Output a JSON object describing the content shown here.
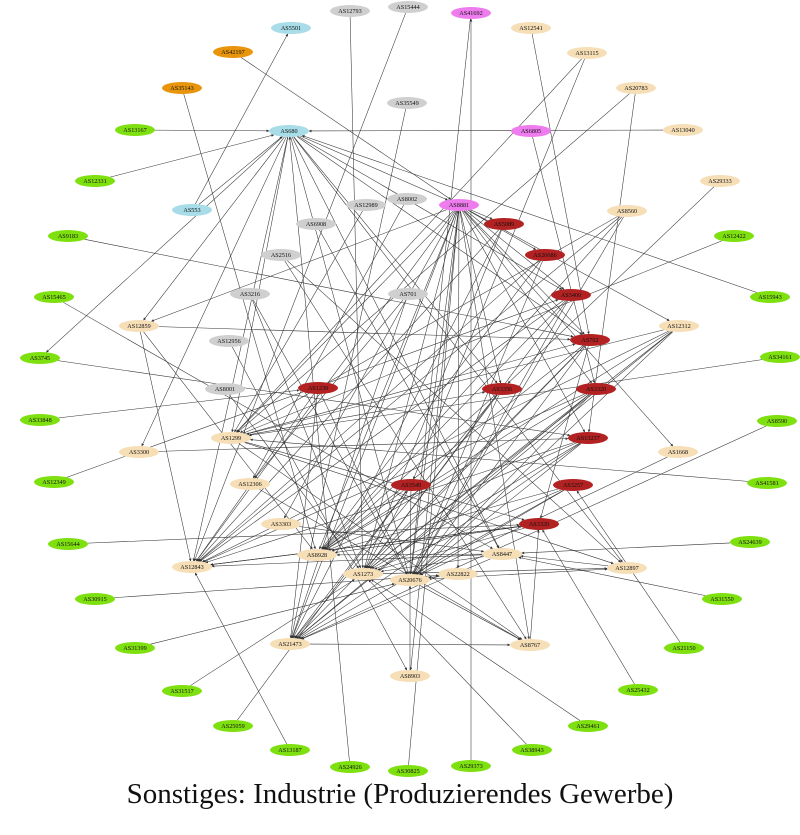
{
  "caption": "Sonstiges: Industrie (Produzierendes Gewerbe)",
  "colors": {
    "green": "#7ee00e",
    "beige": "#f6deb6",
    "darkred": "#b22222",
    "gray": "#cfcfcf",
    "lightblue": "#a7dce8",
    "violet": "#ef7cef",
    "orange": "#e8950c",
    "edge": "#333333"
  },
  "nodes": [
    {
      "id": "AS12793",
      "color": "gray"
    },
    {
      "id": "AS15444",
      "color": "gray"
    },
    {
      "id": "AS41692",
      "color": "violet"
    },
    {
      "id": "AS5501",
      "color": "lightblue"
    },
    {
      "id": "AS12541",
      "color": "beige"
    },
    {
      "id": "AS42197",
      "color": "orange"
    },
    {
      "id": "AS13115",
      "color": "beige"
    },
    {
      "id": "AS35143",
      "color": "orange"
    },
    {
      "id": "AS20783",
      "color": "beige"
    },
    {
      "id": "AS35549",
      "color": "gray"
    },
    {
      "id": "AS13167",
      "color": "green"
    },
    {
      "id": "AS680",
      "color": "lightblue"
    },
    {
      "id": "AS6805",
      "color": "violet"
    },
    {
      "id": "AS13040",
      "color": "beige"
    },
    {
      "id": "AS12331",
      "color": "green"
    },
    {
      "id": "AS29333",
      "color": "beige"
    },
    {
      "id": "AS553",
      "color": "lightblue"
    },
    {
      "id": "AS12989",
      "color": "gray"
    },
    {
      "id": "AS8002",
      "color": "gray"
    },
    {
      "id": "AS8881",
      "color": "violet"
    },
    {
      "id": "AS8560",
      "color": "beige"
    },
    {
      "id": "AS5089",
      "color": "darkred"
    },
    {
      "id": "AS6908",
      "color": "gray"
    },
    {
      "id": "AS9183",
      "color": "green"
    },
    {
      "id": "AS12422",
      "color": "green"
    },
    {
      "id": "AS2516",
      "color": "gray"
    },
    {
      "id": "AS20686",
      "color": "darkred"
    },
    {
      "id": "AS15465",
      "color": "green"
    },
    {
      "id": "AS3216",
      "color": "gray"
    },
    {
      "id": "AS701",
      "color": "gray"
    },
    {
      "id": "AS5400",
      "color": "darkred"
    },
    {
      "id": "AS15943",
      "color": "green"
    },
    {
      "id": "AS12859",
      "color": "beige"
    },
    {
      "id": "AS12312",
      "color": "beige"
    },
    {
      "id": "AS702",
      "color": "darkred"
    },
    {
      "id": "AS12956",
      "color": "gray"
    },
    {
      "id": "AS3745",
      "color": "green"
    },
    {
      "id": "AS34161",
      "color": "green"
    },
    {
      "id": "AS1239",
      "color": "darkred"
    },
    {
      "id": "AS3356",
      "color": "darkred"
    },
    {
      "id": "AS3320",
      "color": "darkred"
    },
    {
      "id": "AS8001",
      "color": "gray"
    },
    {
      "id": "AS33848",
      "color": "green"
    },
    {
      "id": "AS8590",
      "color": "green"
    },
    {
      "id": "AS1299",
      "color": "beige"
    },
    {
      "id": "AS13237",
      "color": "darkred"
    },
    {
      "id": "AS3300",
      "color": "beige"
    },
    {
      "id": "AS1668",
      "color": "beige"
    },
    {
      "id": "AS12349",
      "color": "green"
    },
    {
      "id": "AS12306",
      "color": "beige"
    },
    {
      "id": "AS3549",
      "color": "darkred"
    },
    {
      "id": "AS3257",
      "color": "darkred"
    },
    {
      "id": "AS41581",
      "color": "green"
    },
    {
      "id": "AS3303",
      "color": "beige"
    },
    {
      "id": "AS3320b",
      "label": "AS3320",
      "color": "darkred"
    },
    {
      "id": "AS24639",
      "color": "green"
    },
    {
      "id": "AS15644",
      "color": "green"
    },
    {
      "id": "AS8928",
      "color": "beige"
    },
    {
      "id": "AS8447",
      "color": "beige"
    },
    {
      "id": "AS12843",
      "color": "beige"
    },
    {
      "id": "AS1273",
      "color": "beige"
    },
    {
      "id": "AS20676",
      "color": "beige"
    },
    {
      "id": "AS22822",
      "color": "beige"
    },
    {
      "id": "AS12897",
      "color": "beige"
    },
    {
      "id": "AS30915",
      "color": "green"
    },
    {
      "id": "AS31550",
      "color": "green"
    },
    {
      "id": "AS21473",
      "color": "beige"
    },
    {
      "id": "AS8767",
      "color": "beige"
    },
    {
      "id": "AS31399",
      "color": "green"
    },
    {
      "id": "AS21150",
      "color": "green"
    },
    {
      "id": "AS8903",
      "color": "beige"
    },
    {
      "id": "AS31517",
      "color": "green"
    },
    {
      "id": "AS25432",
      "color": "green"
    },
    {
      "id": "AS25059",
      "color": "green"
    },
    {
      "id": "AS29461",
      "color": "green"
    },
    {
      "id": "AS13187",
      "color": "green"
    },
    {
      "id": "AS38943",
      "color": "green"
    },
    {
      "id": "AS24926",
      "color": "green"
    },
    {
      "id": "AS30825",
      "color": "green"
    },
    {
      "id": "AS29373",
      "color": "green"
    }
  ],
  "edges": [
    [
      "AS13167",
      "AS680"
    ],
    [
      "AS12331",
      "AS680"
    ],
    [
      "AS553",
      "AS5501"
    ],
    [
      "AS553",
      "AS680"
    ],
    [
      "AS42197",
      "AS8881"
    ],
    [
      "AS35143",
      "AS8928"
    ],
    [
      "AS12793",
      "AS1273"
    ],
    [
      "AS15444",
      "AS12843"
    ],
    [
      "AS41692",
      "AS20676"
    ],
    [
      "AS12541",
      "AS702"
    ],
    [
      "AS13115",
      "AS3549"
    ],
    [
      "AS13115",
      "AS1299"
    ],
    [
      "AS20783",
      "AS13237"
    ],
    [
      "AS20783",
      "AS1299"
    ],
    [
      "AS13040",
      "AS680"
    ],
    [
      "AS6805",
      "AS3320"
    ],
    [
      "AS29333",
      "AS3356"
    ],
    [
      "AS35549",
      "AS21473"
    ],
    [
      "AS680",
      "AS8881"
    ],
    [
      "AS680",
      "AS1299"
    ],
    [
      "AS680",
      "AS12843"
    ],
    [
      "AS680",
      "AS20676"
    ],
    [
      "AS680",
      "AS3300"
    ],
    [
      "AS680",
      "AS12859"
    ],
    [
      "AS680",
      "AS8447"
    ],
    [
      "AS680",
      "AS12897"
    ],
    [
      "AS680",
      "AS3745"
    ],
    [
      "AS12989",
      "AS1299"
    ],
    [
      "AS8002",
      "AS12306"
    ],
    [
      "AS8881",
      "AS1299"
    ],
    [
      "AS8881",
      "AS12843"
    ],
    [
      "AS8881",
      "AS20676"
    ],
    [
      "AS8881",
      "AS8928"
    ],
    [
      "AS8881",
      "AS1273"
    ],
    [
      "AS8881",
      "AS22822"
    ],
    [
      "AS8881",
      "AS8767"
    ],
    [
      "AS8881",
      "AS3320"
    ],
    [
      "AS8881",
      "AS12312"
    ],
    [
      "AS8881",
      "AS1668"
    ],
    [
      "AS8881",
      "AS21473"
    ],
    [
      "AS8881",
      "AS8903"
    ],
    [
      "AS8881",
      "AS12859"
    ],
    [
      "AS8881",
      "AS3303"
    ],
    [
      "AS8560",
      "AS1299"
    ],
    [
      "AS8560",
      "AS20676"
    ],
    [
      "AS8560",
      "AS12843"
    ],
    [
      "AS5089",
      "AS1273"
    ],
    [
      "AS5089",
      "AS21473"
    ],
    [
      "AS6908",
      "AS8447"
    ],
    [
      "AS9183",
      "AS702"
    ],
    [
      "AS12422",
      "AS1299"
    ],
    [
      "AS2516",
      "AS12897"
    ],
    [
      "AS2516",
      "AS8767"
    ],
    [
      "AS20686",
      "AS12843"
    ],
    [
      "AS20686",
      "AS8928"
    ],
    [
      "AS15465",
      "AS8447"
    ],
    [
      "AS3216",
      "AS20676"
    ],
    [
      "AS3216",
      "AS1273"
    ],
    [
      "AS701",
      "AS12306"
    ],
    [
      "AS701",
      "AS21473"
    ],
    [
      "AS5400",
      "AS8928"
    ],
    [
      "AS5400",
      "AS1273"
    ],
    [
      "AS5400",
      "AS12843"
    ],
    [
      "AS15943",
      "AS680"
    ],
    [
      "AS12859",
      "AS12843"
    ],
    [
      "AS12859",
      "AS8928"
    ],
    [
      "AS12859",
      "AS702"
    ],
    [
      "AS12312",
      "AS1299"
    ],
    [
      "AS12312",
      "AS12843"
    ],
    [
      "AS12312",
      "AS20676"
    ],
    [
      "AS12312",
      "AS21473"
    ],
    [
      "AS12312",
      "AS8928"
    ],
    [
      "AS702",
      "AS1273"
    ],
    [
      "AS702",
      "AS8928"
    ],
    [
      "AS702",
      "AS20676"
    ],
    [
      "AS702",
      "AS21473"
    ],
    [
      "AS12956",
      "AS8903"
    ],
    [
      "AS3745",
      "AS13237"
    ],
    [
      "AS34161",
      "AS1299"
    ],
    [
      "AS1239",
      "AS12843"
    ],
    [
      "AS1239",
      "AS21473"
    ],
    [
      "AS3356",
      "AS8928"
    ],
    [
      "AS3356",
      "AS1273"
    ],
    [
      "AS3356",
      "AS21473"
    ],
    [
      "AS3320",
      "AS12843"
    ],
    [
      "AS3320",
      "AS1273"
    ],
    [
      "AS3320",
      "AS20676"
    ],
    [
      "AS3320",
      "AS8928"
    ],
    [
      "AS8001",
      "AS1273"
    ],
    [
      "AS33848",
      "AS1239"
    ],
    [
      "AS8590",
      "AS21473"
    ],
    [
      "AS1299",
      "AS12897"
    ],
    [
      "AS1299",
      "AS8767"
    ],
    [
      "AS1299",
      "AS3356"
    ],
    [
      "AS13237",
      "AS1273"
    ],
    [
      "AS13237",
      "AS8928"
    ],
    [
      "AS13237",
      "AS20676"
    ],
    [
      "AS13237",
      "AS21473"
    ],
    [
      "AS3300",
      "AS13237"
    ],
    [
      "AS1668",
      "AS20676"
    ],
    [
      "AS12349",
      "AS5400"
    ],
    [
      "AS12306",
      "AS8767"
    ],
    [
      "AS3549",
      "AS8928"
    ],
    [
      "AS3549",
      "AS1273"
    ],
    [
      "AS3549",
      "AS20676"
    ],
    [
      "AS3257",
      "AS1273"
    ],
    [
      "AS3257",
      "AS8928"
    ],
    [
      "AS3257",
      "AS21473"
    ],
    [
      "AS41581",
      "AS1299"
    ],
    [
      "AS3303",
      "AS8447"
    ],
    [
      "AS3320b",
      "AS8928"
    ],
    [
      "AS3320b",
      "AS1273"
    ],
    [
      "AS3320b",
      "AS12843"
    ],
    [
      "AS24639",
      "AS8447"
    ],
    [
      "AS15644",
      "AS3320b"
    ],
    [
      "AS8447",
      "AS12843"
    ],
    [
      "AS8447",
      "AS8928"
    ],
    [
      "AS8447",
      "AS21473"
    ],
    [
      "AS12843",
      "AS3320b"
    ],
    [
      "AS1273",
      "AS12897"
    ],
    [
      "AS20676",
      "AS12897"
    ],
    [
      "AS22822",
      "AS20676"
    ],
    [
      "AS12897",
      "AS8447"
    ],
    [
      "AS30915",
      "AS22822"
    ],
    [
      "AS31550",
      "AS8447"
    ],
    [
      "AS21473",
      "AS8767"
    ],
    [
      "AS8767",
      "AS3320b"
    ],
    [
      "AS31399",
      "AS20676"
    ],
    [
      "AS21150",
      "AS3257"
    ],
    [
      "AS8903",
      "AS20676"
    ],
    [
      "AS31517",
      "AS1273"
    ],
    [
      "AS25432",
      "AS3320b"
    ],
    [
      "AS25059",
      "AS3549"
    ],
    [
      "AS29461",
      "AS1273"
    ],
    [
      "AS13187",
      "AS12843"
    ],
    [
      "AS38943",
      "AS1273"
    ],
    [
      "AS24926",
      "AS680"
    ],
    [
      "AS30825",
      "AS8881"
    ],
    [
      "AS29373",
      "AS41692"
    ],
    [
      "AS20676",
      "AS8767"
    ],
    [
      "AS702",
      "AS3320b"
    ],
    [
      "AS5089",
      "AS12843"
    ],
    [
      "AS20686",
      "AS20676"
    ],
    [
      "AS5400",
      "AS20676"
    ],
    [
      "AS1239",
      "AS20676"
    ],
    [
      "AS3356",
      "AS20676"
    ],
    [
      "AS3320",
      "AS21473"
    ],
    [
      "AS13237",
      "AS12843"
    ],
    [
      "AS3257",
      "AS20676"
    ],
    [
      "AS3549",
      "AS21473"
    ],
    [
      "AS8881",
      "AS3356"
    ],
    [
      "AS8881",
      "AS13237"
    ],
    [
      "AS8881",
      "AS702"
    ],
    [
      "AS8881",
      "AS5400"
    ],
    [
      "AS8881",
      "AS20686"
    ],
    [
      "AS8881",
      "AS5089"
    ],
    [
      "AS680",
      "AS702"
    ],
    [
      "AS680",
      "AS3356"
    ],
    [
      "AS680",
      "AS5400"
    ],
    [
      "AS8560",
      "AS8928"
    ],
    [
      "AS12312",
      "AS1273"
    ],
    [
      "AS1299",
      "AS702"
    ],
    [
      "AS1299",
      "AS3320b"
    ],
    [
      "AS8447",
      "AS1273"
    ]
  ]
}
